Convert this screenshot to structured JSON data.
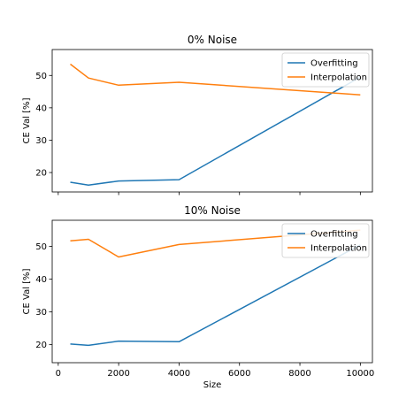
{
  "chart_data": [
    {
      "type": "line",
      "title": "0% Noise",
      "xlabel": "",
      "ylabel": "CE Val [%]",
      "xlim": [
        -200,
        10400
      ],
      "ylim": [
        14,
        58
      ],
      "xticks": [
        0,
        2000,
        4000,
        6000,
        8000,
        10000
      ],
      "yticks": [
        20,
        30,
        40,
        50
      ],
      "show_xticklabels": false,
      "legend": "top-right",
      "series": [
        {
          "name": "Overfitting",
          "color": "#1f77b4",
          "x": [
            400,
            1000,
            2000,
            4000,
            10000
          ],
          "y": [
            17.0,
            16.1,
            17.4,
            17.8,
            49.5
          ]
        },
        {
          "name": "Interpolation",
          "color": "#ff7f0e",
          "x": [
            400,
            1000,
            2000,
            4000,
            10000
          ],
          "y": [
            53.5,
            49.2,
            47.0,
            47.9,
            44.0
          ]
        }
      ]
    },
    {
      "type": "line",
      "title": "10% Noise",
      "xlabel": "Size",
      "ylabel": "CE Val [%]",
      "xlim": [
        -200,
        10400
      ],
      "ylim": [
        14.5,
        58
      ],
      "xticks": [
        0,
        2000,
        4000,
        6000,
        8000,
        10000
      ],
      "yticks": [
        20,
        30,
        40,
        50
      ],
      "show_xticklabels": true,
      "legend": "top-right",
      "series": [
        {
          "name": "Overfitting",
          "color": "#1f77b4",
          "x": [
            400,
            1000,
            2000,
            4000,
            10000
          ],
          "y": [
            20.2,
            19.8,
            21.1,
            20.9,
            50.5
          ]
        },
        {
          "name": "Interpolation",
          "color": "#ff7f0e",
          "x": [
            400,
            1000,
            2000,
            4000,
            10000
          ],
          "y": [
            51.7,
            52.2,
            46.8,
            50.6,
            55.0
          ]
        }
      ]
    }
  ]
}
